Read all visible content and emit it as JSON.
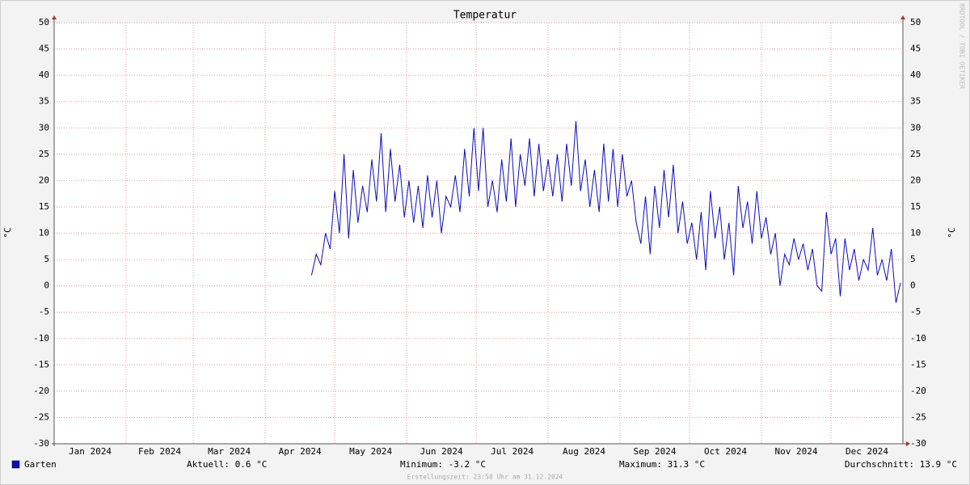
{
  "chart_data": {
    "type": "line",
    "title": "Temperatur",
    "y_label": "°C",
    "watermark": "RRDTOOL / TOBI OETIKER",
    "footer": "Erstellungszeit: 23:58 Uhr am 31.12.2024",
    "stats": [
      "Aktuell: 0.6 °C",
      "Minimum: -3.2 °C",
      "Maximum: 31.3 °C",
      "Durchschnitt: 13.9 °C"
    ],
    "xlim": [
      1,
      367
    ],
    "xticks": [
      {
        "value": 1,
        "label": "Jan 2024"
      },
      {
        "value": 32,
        "label": "Feb 2024"
      },
      {
        "value": 61,
        "label": "Mar 2024"
      },
      {
        "value": 92,
        "label": "Apr 2024"
      },
      {
        "value": 122,
        "label": "May 2024"
      },
      {
        "value": 153,
        "label": "Jun 2024"
      },
      {
        "value": 183,
        "label": "Jul 2024"
      },
      {
        "value": 214,
        "label": "Aug 2024"
      },
      {
        "value": 245,
        "label": "Sep 2024"
      },
      {
        "value": 275,
        "label": "Oct 2024"
      },
      {
        "value": 306,
        "label": "Nov 2024"
      },
      {
        "value": 336,
        "label": "Dec 2024"
      }
    ],
    "ylim": [
      -30,
      50
    ],
    "yticks": [
      -30,
      -25,
      -20,
      -15,
      -10,
      -5,
      0,
      5,
      10,
      15,
      20,
      25,
      30,
      35,
      40,
      45,
      50
    ],
    "grid": true,
    "x": [
      112,
      114,
      116,
      118,
      120,
      122,
      124,
      126,
      128,
      130,
      132,
      134,
      136,
      138,
      140,
      142,
      144,
      146,
      148,
      150,
      152,
      154,
      156,
      158,
      160,
      162,
      164,
      166,
      168,
      170,
      172,
      174,
      176,
      178,
      180,
      182,
      184,
      186,
      188,
      190,
      192,
      194,
      196,
      198,
      200,
      202,
      204,
      206,
      208,
      210,
      212,
      214,
      216,
      218,
      220,
      222,
      224,
      226,
      228,
      230,
      232,
      234,
      236,
      238,
      240,
      242,
      244,
      246,
      248,
      250,
      252,
      254,
      256,
      258,
      260,
      262,
      264,
      266,
      268,
      270,
      272,
      274,
      276,
      278,
      280,
      282,
      284,
      286,
      288,
      290,
      292,
      294,
      296,
      298,
      300,
      302,
      304,
      306,
      308,
      310,
      312,
      314,
      316,
      318,
      320,
      322,
      324,
      326,
      328,
      330,
      332,
      334,
      336,
      338,
      340,
      342,
      344,
      346,
      348,
      350,
      352,
      354,
      356,
      358,
      360,
      362,
      364,
      366
    ],
    "series": [
      {
        "name": "Garten",
        "color": "#0c0cbf",
        "values": [
          2,
          6,
          4,
          10,
          7,
          18,
          10,
          25,
          9,
          22,
          12,
          19,
          14,
          24,
          16,
          29,
          14,
          26,
          16,
          23,
          13,
          20,
          12,
          19,
          11,
          21,
          13,
          20,
          10,
          17,
          15,
          21,
          14,
          26,
          17,
          30,
          18,
          30,
          15,
          20,
          14,
          24,
          16,
          28,
          15,
          25,
          19,
          28,
          17,
          27,
          18,
          24,
          17,
          25,
          16,
          27,
          19,
          31.3,
          18,
          24,
          15,
          22,
          14,
          27,
          16,
          26,
          15,
          25,
          17,
          20,
          12,
          8,
          17,
          6,
          19,
          11,
          22,
          13,
          23,
          10,
          16,
          8,
          12,
          5,
          14,
          3,
          18,
          9,
          15,
          5,
          12,
          2,
          19,
          11,
          16,
          8,
          18,
          9,
          13,
          6,
          10,
          0,
          6,
          4,
          9,
          5,
          8,
          3,
          7,
          0,
          -1,
          14,
          6,
          9,
          -2,
          9,
          3,
          7,
          1,
          5,
          3,
          11,
          2,
          5,
          1,
          7,
          -3.2,
          0.6
        ]
      }
    ]
  }
}
